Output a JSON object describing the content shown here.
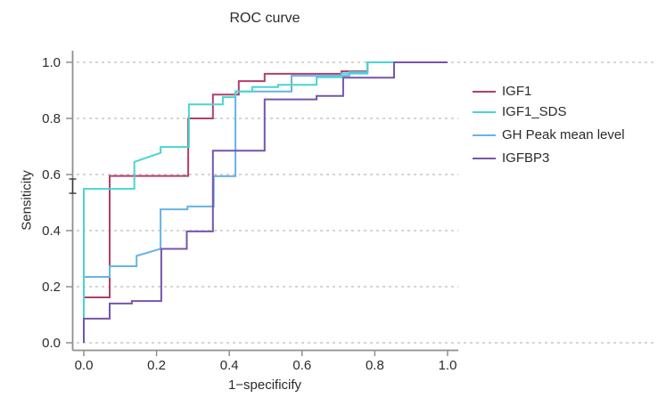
{
  "title": "ROC curve",
  "axes": {
    "x_label": "1−specificify",
    "y_label": "Sensiticity",
    "tick_values": [
      0.0,
      0.2,
      0.4,
      0.6,
      0.8,
      1.0
    ],
    "x_tick_labels": [
      "0.0",
      "0.2",
      "0.4",
      "0.6",
      "0.8",
      "1.0"
    ],
    "y_tick_labels": [
      "0.0",
      "0.2",
      "0.4",
      "0.6",
      "0.8",
      "1.0"
    ]
  },
  "colors": {
    "igf1": "#b13f6d",
    "igf1_sds": "#48d5d2",
    "gh_peak": "#66b3e6",
    "igfbp3": "#7455ad",
    "axis": "#8f8f8f",
    "gridline": "#bcbcbc",
    "text": "#2b2b2b",
    "marker": "#3a3a3a",
    "background": "#ffffff"
  },
  "legend": [
    {
      "label": "IGF1",
      "color": "#b13f6d"
    },
    {
      "label": "IGF1_SDS",
      "color": "#48d5d2"
    },
    {
      "label": "GH Peak mean level",
      "color": "#66b3e6"
    },
    {
      "label": "IGFBP3",
      "color": "#7455ad"
    }
  ],
  "chart_data": {
    "type": "line",
    "subtype": "ROC step curves",
    "title": "ROC curve",
    "xlabel": "1−specificify",
    "ylabel": "Sensiticity",
    "xlim": [
      0,
      1
    ],
    "ylim": [
      0,
      1
    ],
    "grid": "horizontal dashed lines at 0.0,0.2,0.4,0.6,0.8,1.0; 0.0 and 1.0 lines extend full figure width",
    "legend_position": "right",
    "axis_marker": {
      "shape": "I-beam",
      "x": 0.0,
      "y_bottom": 0.533,
      "y_top": 0.584,
      "note": "small I-shaped cap marker drawn on the y-axis line near sensitivity 0.55"
    },
    "series": [
      {
        "name": "IGF1",
        "color": "#b13f6d",
        "points": [
          [
            0,
            0
          ],
          [
            0,
            0.162
          ],
          [
            0.071,
            0.162
          ],
          [
            0.071,
            0.595
          ],
          [
            0.287,
            0.595
          ],
          [
            0.287,
            0.8
          ],
          [
            0.355,
            0.8
          ],
          [
            0.355,
            0.885
          ],
          [
            0.426,
            0.885
          ],
          [
            0.426,
            0.933
          ],
          [
            0.497,
            0.933
          ],
          [
            0.497,
            0.959
          ],
          [
            0.708,
            0.959
          ],
          [
            0.708,
            0.968
          ],
          [
            0.78,
            0.968
          ],
          [
            0.78,
            1.0
          ],
          [
            1.0,
            1.0
          ]
        ]
      },
      {
        "name": "IGF1_SDS",
        "color": "#48d5d2",
        "points": [
          [
            0,
            0
          ],
          [
            0,
            0.549
          ],
          [
            0.139,
            0.549
          ],
          [
            0.139,
            0.645
          ],
          [
            0.211,
            0.677
          ],
          [
            0.211,
            0.698
          ],
          [
            0.289,
            0.698
          ],
          [
            0.289,
            0.85
          ],
          [
            0.382,
            0.85
          ],
          [
            0.382,
            0.876
          ],
          [
            0.417,
            0.876
          ],
          [
            0.417,
            0.896
          ],
          [
            0.463,
            0.896
          ],
          [
            0.463,
            0.912
          ],
          [
            0.534,
            0.912
          ],
          [
            0.534,
            0.92
          ],
          [
            0.64,
            0.92
          ],
          [
            0.64,
            0.947
          ],
          [
            0.708,
            0.947
          ],
          [
            0.708,
            0.96
          ],
          [
            0.78,
            0.96
          ],
          [
            0.78,
            1.0
          ],
          [
            1.0,
            1.0
          ]
        ]
      },
      {
        "name": "GH Peak mean level",
        "color": "#66b3e6",
        "points": [
          [
            0,
            0
          ],
          [
            0,
            0.235
          ],
          [
            0.071,
            0.235
          ],
          [
            0.071,
            0.273
          ],
          [
            0.145,
            0.273
          ],
          [
            0.145,
            0.31
          ],
          [
            0.211,
            0.335
          ],
          [
            0.211,
            0.476
          ],
          [
            0.285,
            0.476
          ],
          [
            0.285,
            0.486
          ],
          [
            0.357,
            0.486
          ],
          [
            0.357,
            0.594
          ],
          [
            0.417,
            0.594
          ],
          [
            0.417,
            0.896
          ],
          [
            0.571,
            0.896
          ],
          [
            0.571,
            0.952
          ],
          [
            0.73,
            0.952
          ],
          [
            0.73,
            0.965
          ],
          [
            0.78,
            0.965
          ],
          [
            0.78,
            1.0
          ],
          [
            1.0,
            1.0
          ]
        ]
      },
      {
        "name": "IGFBP3",
        "color": "#7455ad",
        "points": [
          [
            0,
            0
          ],
          [
            0,
            0.086
          ],
          [
            0.071,
            0.086
          ],
          [
            0.071,
            0.14
          ],
          [
            0.132,
            0.14
          ],
          [
            0.132,
            0.149
          ],
          [
            0.213,
            0.149
          ],
          [
            0.213,
            0.335
          ],
          [
            0.283,
            0.335
          ],
          [
            0.283,
            0.397
          ],
          [
            0.355,
            0.397
          ],
          [
            0.355,
            0.685
          ],
          [
            0.497,
            0.685
          ],
          [
            0.497,
            0.868
          ],
          [
            0.64,
            0.868
          ],
          [
            0.64,
            0.88
          ],
          [
            0.713,
            0.88
          ],
          [
            0.713,
            0.945
          ],
          [
            0.853,
            0.945
          ],
          [
            0.853,
            1.0
          ],
          [
            1.0,
            1.0
          ]
        ]
      }
    ]
  }
}
